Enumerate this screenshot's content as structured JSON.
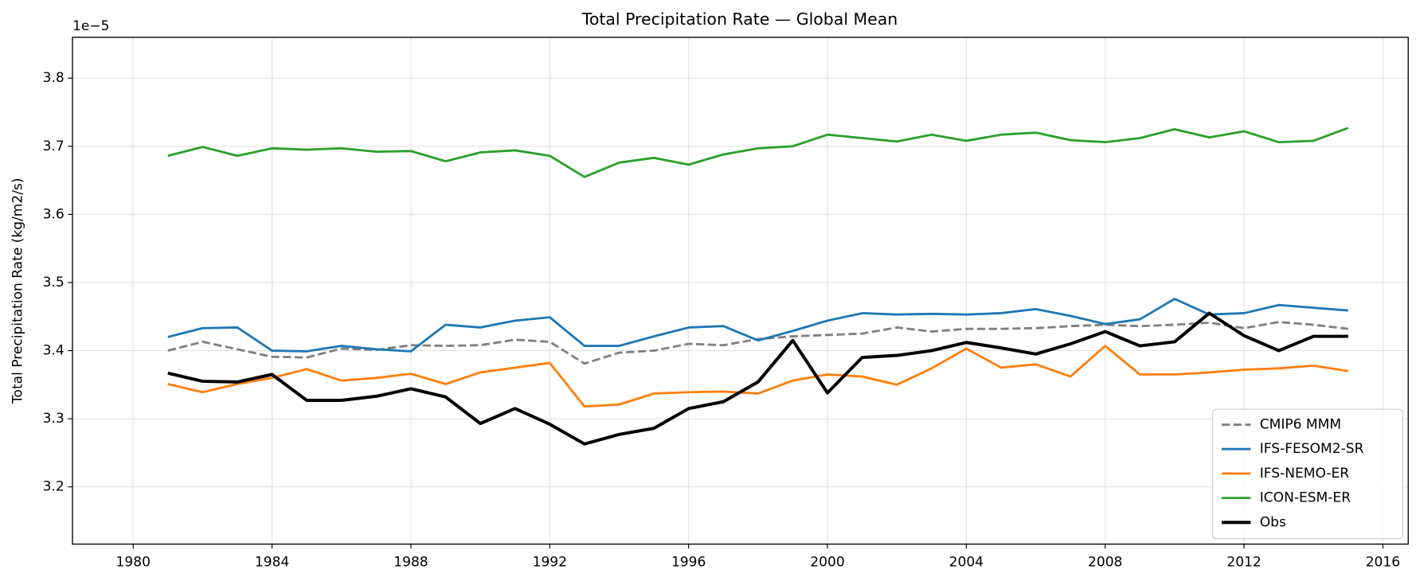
{
  "chart_data": {
    "type": "line",
    "title": "Total Precipitation Rate — Global Mean",
    "y_label": "Total Precipitation Rate (kg/m2/s)",
    "y_offset_label": "1e−5",
    "x": [
      1981,
      1982,
      1983,
      1984,
      1985,
      1986,
      1987,
      1988,
      1989,
      1990,
      1991,
      1992,
      1993,
      1994,
      1995,
      1996,
      1997,
      1998,
      1999,
      2000,
      2001,
      2002,
      2003,
      2004,
      2005,
      2006,
      2007,
      2008,
      2009,
      2010,
      2011,
      2012,
      2013,
      2014,
      2015
    ],
    "series": [
      {
        "name": "CMIP6 MMM",
        "color": "#808080",
        "style": "dashed",
        "linewidth": 2.5,
        "values": [
          3.4,
          3.413,
          3.402,
          3.391,
          3.39,
          3.403,
          3.401,
          3.408,
          3.407,
          3.408,
          3.416,
          3.413,
          3.381,
          3.397,
          3.4,
          3.41,
          3.408,
          3.417,
          3.421,
          3.423,
          3.425,
          3.434,
          3.428,
          3.432,
          3.432,
          3.433,
          3.436,
          3.438,
          3.436,
          3.438,
          3.441,
          3.433,
          3.442,
          3.438,
          3.432
        ]
      },
      {
        "name": "IFS-FESOM2-SR",
        "color": "#1f77b4",
        "style": "solid",
        "linewidth": 2.5,
        "values": [
          3.42,
          3.433,
          3.434,
          3.4,
          3.399,
          3.407,
          3.402,
          3.399,
          3.438,
          3.434,
          3.444,
          3.449,
          3.407,
          3.407,
          3.421,
          3.434,
          3.436,
          3.415,
          3.429,
          3.444,
          3.455,
          3.453,
          3.454,
          3.453,
          3.455,
          3.461,
          3.451,
          3.439,
          3.446,
          3.476,
          3.453,
          3.455,
          3.467,
          3.463,
          3.459
        ]
      },
      {
        "name": "IFS-NEMO-ER",
        "color": "#ff7f0e",
        "style": "solid",
        "linewidth": 2.5,
        "values": [
          3.351,
          3.339,
          3.351,
          3.36,
          3.373,
          3.356,
          3.36,
          3.366,
          3.351,
          3.368,
          3.375,
          3.382,
          3.318,
          3.321,
          3.337,
          3.339,
          3.34,
          3.337,
          3.356,
          3.365,
          3.362,
          3.35,
          3.374,
          3.403,
          3.375,
          3.38,
          3.362,
          3.407,
          3.365,
          3.365,
          3.368,
          3.372,
          3.374,
          3.378,
          3.37
        ]
      },
      {
        "name": "ICON-ESM-ER",
        "color": "#2ca02c",
        "style": "solid",
        "linewidth": 2.5,
        "values": [
          3.686,
          3.699,
          3.686,
          3.697,
          3.695,
          3.697,
          3.692,
          3.693,
          3.678,
          3.691,
          3.694,
          3.686,
          3.655,
          3.676,
          3.683,
          3.673,
          3.688,
          3.697,
          3.7,
          3.717,
          3.712,
          3.707,
          3.717,
          3.708,
          3.717,
          3.72,
          3.709,
          3.706,
          3.712,
          3.725,
          3.713,
          3.722,
          3.706,
          3.708,
          3.727
        ]
      },
      {
        "name": "Obs",
        "color": "#000000",
        "style": "solid",
        "linewidth": 3.5,
        "values": [
          3.367,
          3.355,
          3.354,
          3.365,
          3.327,
          3.327,
          3.333,
          3.344,
          3.332,
          3.293,
          3.315,
          3.292,
          3.263,
          3.277,
          3.286,
          3.315,
          3.325,
          3.354,
          3.415,
          3.338,
          3.39,
          3.393,
          3.4,
          3.412,
          3.404,
          3.395,
          3.41,
          3.428,
          3.407,
          3.413,
          3.455,
          3.422,
          3.4,
          3.421,
          3.421
        ]
      }
    ],
    "xlim": [
      1978.25,
      2016.73
    ],
    "xticks": [
      1980,
      1984,
      1988,
      1992,
      1996,
      2000,
      2004,
      2008,
      2012,
      2016
    ],
    "ylim": [
      3.116,
      3.86
    ],
    "yticks": [
      3.2,
      3.3,
      3.4,
      3.5,
      3.6,
      3.7,
      3.8
    ],
    "grid": true,
    "legend": "lower right"
  }
}
